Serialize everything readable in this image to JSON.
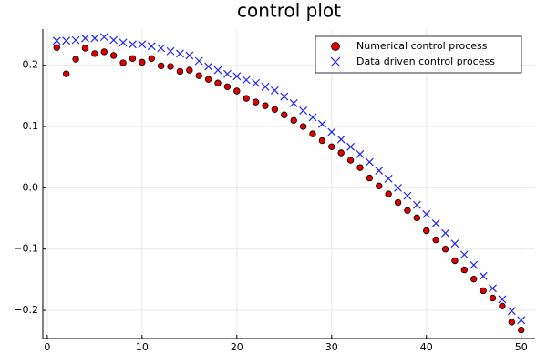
{
  "chart_data": {
    "type": "scatter",
    "title": "control plot",
    "x": [
      1,
      2,
      3,
      4,
      5,
      6,
      7,
      8,
      9,
      10,
      11,
      12,
      13,
      14,
      15,
      16,
      17,
      18,
      19,
      20,
      21,
      22,
      23,
      24,
      25,
      26,
      27,
      28,
      29,
      30,
      31,
      32,
      33,
      34,
      35,
      36,
      37,
      38,
      39,
      40,
      41,
      42,
      43,
      44,
      45,
      46,
      47,
      48,
      49,
      50
    ],
    "series": [
      {
        "name": "Numerical control process",
        "color": "#e00000",
        "marker": "circle",
        "values": [
          0.229,
          0.186,
          0.21,
          0.228,
          0.219,
          0.222,
          0.216,
          0.204,
          0.211,
          0.205,
          0.211,
          0.199,
          0.198,
          0.19,
          0.192,
          0.183,
          0.177,
          0.171,
          0.165,
          0.158,
          0.146,
          0.14,
          0.134,
          0.128,
          0.119,
          0.11,
          0.1,
          0.088,
          0.077,
          0.067,
          0.057,
          0.045,
          0.033,
          0.016,
          0.003,
          -0.01,
          -0.024,
          -0.037,
          -0.049,
          -0.07,
          -0.085,
          -0.1,
          -0.119,
          -0.134,
          -0.149,
          -0.168,
          -0.18,
          -0.193,
          -0.219,
          -0.232
        ]
      },
      {
        "name": "Data driven control process",
        "color": "#2222ff",
        "marker": "x",
        "values": [
          0.24,
          0.24,
          0.241,
          0.244,
          0.244,
          0.246,
          0.241,
          0.237,
          0.234,
          0.234,
          0.231,
          0.228,
          0.223,
          0.219,
          0.216,
          0.207,
          0.198,
          0.192,
          0.186,
          0.182,
          0.176,
          0.171,
          0.165,
          0.159,
          0.149,
          0.138,
          0.126,
          0.115,
          0.104,
          0.091,
          0.079,
          0.067,
          0.055,
          0.042,
          0.028,
          0.015,
          0.0,
          -0.013,
          -0.028,
          -0.043,
          -0.058,
          -0.074,
          -0.091,
          -0.109,
          -0.126,
          -0.144,
          -0.164,
          -0.182,
          -0.201,
          -0.216
        ]
      }
    ],
    "xlim": [
      -0.47,
      51.47
    ],
    "xticks": [
      0,
      10,
      20,
      30,
      40,
      50
    ],
    "ylim": [
      -0.246,
      0.259
    ],
    "yticks": [
      {
        "value": -0.2,
        "label": "−0.2"
      },
      {
        "value": -0.1,
        "label": "−0.1"
      },
      {
        "value": 0,
        "label": "0.0"
      },
      0.1,
      0.2
    ],
    "grid": true,
    "legend": "top-right"
  }
}
